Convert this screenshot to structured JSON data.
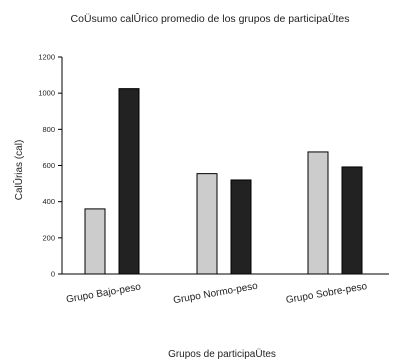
{
  "chart_data": {
    "type": "bar",
    "title": "CoÜsumo calÛrico promedio de los grupos de participaÜtes",
    "xlabel": "Grupos de participaÜtes",
    "ylabel": "CalÛrias (cal)",
    "ylim": [
      0,
      1200
    ],
    "yticks": [
      0,
      200,
      400,
      600,
      800,
      1000,
      1200
    ],
    "categories": [
      "Grupo Bajo-peso",
      "Grupo Normo-peso",
      "Grupo Sobre-peso"
    ],
    "series": [
      {
        "values": [
          360,
          555,
          675
        ],
        "color": "#cccccc"
      },
      {
        "values": [
          1025,
          520,
          592
        ],
        "color": "#222222"
      }
    ],
    "grid": false,
    "legend": "none"
  }
}
